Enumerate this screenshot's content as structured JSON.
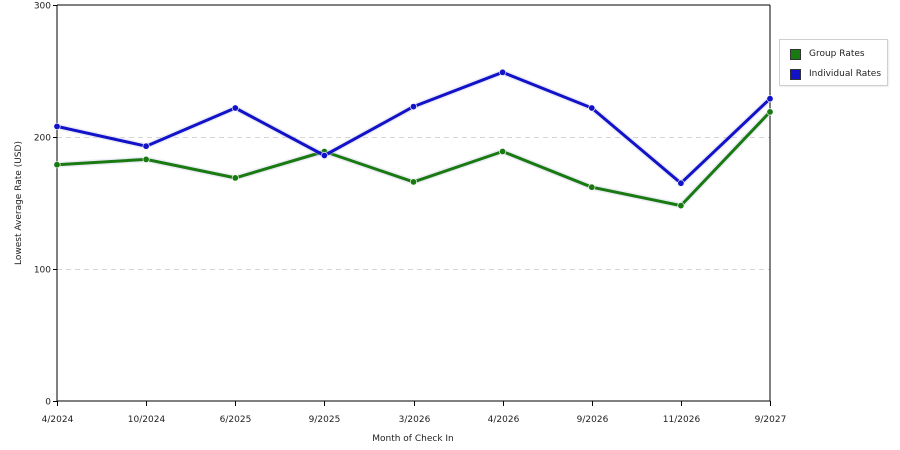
{
  "chart_data": {
    "type": "line",
    "xlabel": "Month of Check In",
    "ylabel": "Lowest Average Rate (USD)",
    "categories": [
      "4/2024",
      "10/2024",
      "6/2025",
      "9/2025",
      "3/2026",
      "4/2026",
      "9/2026",
      "11/2026",
      "9/2027"
    ],
    "ylim": [
      0,
      300
    ],
    "yticks": [
      0,
      100,
      200,
      300
    ],
    "grid": true,
    "legend_position": "right",
    "series": [
      {
        "name": "Group Rates",
        "color": "#1a7a12",
        "values": [
          179,
          183,
          169,
          189,
          166,
          189,
          162,
          148,
          219
        ]
      },
      {
        "name": "Individual Rates",
        "color": "#1212c8",
        "values": [
          208,
          193,
          222,
          186,
          223,
          249,
          222,
          165,
          229
        ]
      }
    ]
  },
  "legend": {
    "items": [
      {
        "label": "Group Rates",
        "color": "#1a7a12"
      },
      {
        "label": "Individual Rates",
        "color": "#1212c8"
      }
    ]
  }
}
